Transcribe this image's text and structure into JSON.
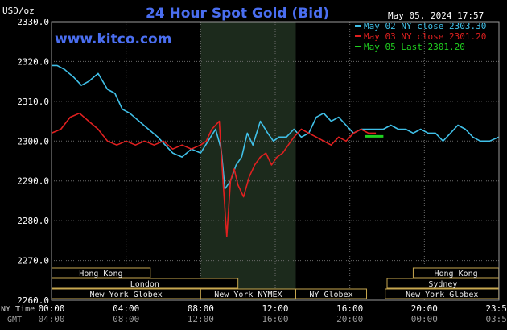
{
  "chart_data": {
    "type": "line",
    "title": "24 Hour Spot Gold (Bid)",
    "currency_label": "USD/oz",
    "watermark": "www.kitco.com",
    "timestamp": "May 05, 2024 17:57",
    "ylim": [
      2260,
      2330
    ],
    "y_ticks": [
      2260,
      2270,
      2280,
      2290,
      2300,
      2310,
      2320,
      2330
    ],
    "y_tick_labels": [
      "2260.0",
      "2270.0",
      "2280.0",
      "2290.0",
      "2300.0",
      "2310.0",
      "2320.0",
      "2330.0"
    ],
    "xlim": [
      0,
      24
    ],
    "x_ticks": [
      0,
      4,
      8,
      12,
      16,
      20,
      24
    ],
    "x_ny_labels": [
      "00:00",
      "04:00",
      "08:00",
      "12:00",
      "16:00",
      "20:00",
      "23:59"
    ],
    "x_gmt_labels": [
      "04:00",
      "08:00",
      "12:00",
      "16:00",
      "20:00",
      "00:00",
      "03:59"
    ],
    "ny_time_label": "NY Time",
    "gmt_label": "GMT",
    "highlight_range": [
      8,
      13.1
    ],
    "grid": true,
    "legend": [
      {
        "text": "May 02 NY close 2303.30",
        "color": "#40c0e8"
      },
      {
        "text": "May 03 NY close 2301.20",
        "color": "#e02020"
      },
      {
        "text": "May 05 Last 2301.20",
        "color": "#20d020"
      }
    ],
    "series": [
      {
        "name": "May 02",
        "color": "#40c0e8",
        "x": [
          0,
          0.3,
          0.7,
          1.2,
          1.6,
          2,
          2.5,
          3,
          3.4,
          3.8,
          4.2,
          4.7,
          5.2,
          5.7,
          6.1,
          6.5,
          7,
          7.5,
          8,
          8.4,
          8.8,
          9.1,
          9.3,
          9.6,
          9.9,
          10.2,
          10.5,
          10.8,
          11.2,
          11.6,
          11.9,
          12.2,
          12.6,
          13,
          13.4,
          13.8,
          14.2,
          14.6,
          15,
          15.4,
          15.8,
          16.2,
          16.6,
          17,
          17.4,
          17.8,
          18.2,
          18.6,
          19,
          19.4,
          19.8,
          20.2,
          20.6,
          21,
          21.4,
          21.8,
          22.2,
          22.6,
          23,
          23.5,
          23.99
        ],
        "y": [
          2319,
          2319,
          2318,
          2316,
          2314,
          2315,
          2317,
          2313,
          2312,
          2308,
          2307,
          2305,
          2303,
          2301,
          2299,
          2297,
          2296,
          2298,
          2297,
          2300,
          2303,
          2298,
          2288,
          2290,
          2294,
          2296,
          2302,
          2299,
          2305,
          2302,
          2300,
          2301,
          2301,
          2303,
          2301,
          2302,
          2306,
          2307,
          2305,
          2306,
          2304,
          2302,
          2303,
          2303,
          2303,
          2303,
          2304,
          2303,
          2303,
          2302,
          2303,
          2302,
          2302,
          2300,
          2302,
          2304,
          2303,
          2301,
          2300,
          2300,
          2301
        ]
      },
      {
        "name": "May 03",
        "color": "#e02020",
        "x": [
          0,
          0.5,
          1,
          1.5,
          2,
          2.5,
          3,
          3.5,
          4,
          4.5,
          5,
          5.5,
          6,
          6.5,
          7,
          7.5,
          8,
          8.3,
          8.6,
          9,
          9.2,
          9.4,
          9.6,
          9.8,
          10,
          10.3,
          10.6,
          10.9,
          11.2,
          11.5,
          11.8,
          12.1,
          12.4,
          12.7,
          13,
          13.4,
          13.8,
          14.2,
          14.6,
          15,
          15.4,
          15.8,
          16.2,
          16.6,
          17,
          17.4
        ],
        "y": [
          2302,
          2303,
          2306,
          2307,
          2305,
          2303,
          2300,
          2299,
          2300,
          2299,
          2300,
          2299,
          2300,
          2298,
          2299,
          2298,
          2299,
          2300,
          2303,
          2305,
          2290,
          2276,
          2290,
          2293,
          2289,
          2286,
          2291,
          2294,
          2296,
          2297,
          2294,
          2296,
          2297,
          2299,
          2301,
          2303,
          2302,
          2301,
          2300,
          2299,
          2301,
          2300,
          2302,
          2303,
          2302,
          2302
        ]
      },
      {
        "name": "May 05",
        "color": "#20d020",
        "x": [
          16.8,
          17.8
        ],
        "y": [
          2301.2,
          2301.2
        ]
      }
    ],
    "session_bars": {
      "row1": [
        {
          "label": "Hong Kong",
          "start": 0,
          "end": 5.3
        },
        {
          "label": "Hong Kong",
          "start": 19.4,
          "end": 23.99
        }
      ],
      "row2": [
        {
          "label": "London",
          "start": 0,
          "end": 10
        },
        {
          "label": "Sydney",
          "start": 18,
          "end": 23.99
        }
      ],
      "row3": [
        {
          "label": "New York Globex",
          "start": 0,
          "end": 8
        },
        {
          "label": "New York NYMEX",
          "start": 8,
          "end": 13.1
        },
        {
          "label": "NY Globex",
          "start": 13.1,
          "end": 16.9
        },
        {
          "label": "New York Globex",
          "start": 17.9,
          "end": 23.99
        }
      ]
    }
  }
}
